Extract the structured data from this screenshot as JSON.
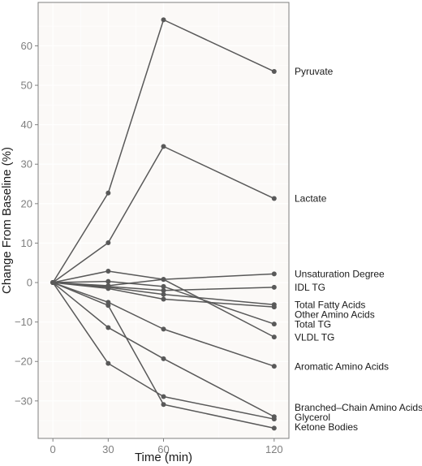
{
  "chart_data": {
    "type": "line",
    "xlabel": "Time (min)",
    "ylabel": "Change From Baseline (%)",
    "x": [
      0,
      30,
      60,
      120
    ],
    "xticks": [
      0,
      30,
      60,
      120
    ],
    "yticks": [
      -30,
      -20,
      -10,
      0,
      10,
      20,
      30,
      40,
      50,
      60
    ],
    "xlim": [
      -8,
      128
    ],
    "ylim": [
      -39.5,
      71
    ],
    "grid": true,
    "legend": "direct labels at right",
    "colors": {
      "line": "#595959",
      "panel": "#fbf9f7",
      "grid": "#ffffff",
      "border": "#7f7f7f"
    },
    "series": [
      {
        "name": "Pyruvate",
        "values": [
          0,
          22.7,
          66.6,
          53.5
        ]
      },
      {
        "name": "Lactate",
        "values": [
          0,
          10.1,
          34.5,
          21.3
        ]
      },
      {
        "name": "Unsaturation Degree",
        "values": [
          0,
          2.9,
          0.8,
          2.2
        ]
      },
      {
        "name": "IDL TG",
        "values": [
          0,
          -1.0,
          -2.0,
          -1.2
        ]
      },
      {
        "name": "Total Fatty Acids",
        "values": [
          0,
          -1.2,
          -3.0,
          -5.6
        ]
      },
      {
        "name": "Other Amino Acids",
        "values": [
          0,
          -1.5,
          -4.2,
          -6.2
        ]
      },
      {
        "name": "Total TG",
        "values": [
          0,
          0.3,
          -1.0,
          -10.5
        ]
      },
      {
        "name": "VLDL TG",
        "values": [
          0,
          -0.8,
          0.8,
          -13.8
        ]
      },
      {
        "name": "Aromatic Amino Acids",
        "values": [
          0,
          -5.0,
          -11.8,
          -21.2
        ]
      },
      {
        "name": "Branched–Chain Amino Acids",
        "values": [
          0,
          -11.4,
          -19.3,
          -34.0
        ]
      },
      {
        "name": "Glycerol",
        "values": [
          0,
          -20.5,
          -28.9,
          -34.6
        ]
      },
      {
        "name": "Ketone Bodies",
        "values": [
          0,
          -5.8,
          -30.9,
          -36.9
        ]
      }
    ]
  }
}
